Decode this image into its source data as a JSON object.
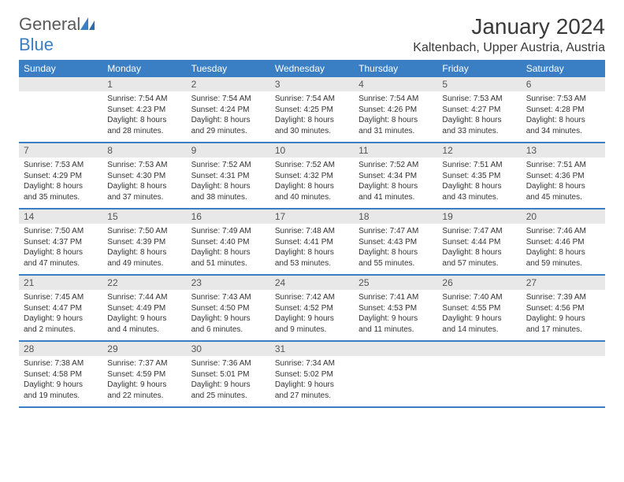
{
  "logo": {
    "word1": "General",
    "word2": "Blue"
  },
  "title": "January 2024",
  "location": "Kaltenbach, Upper Austria, Austria",
  "colors": {
    "header_bar": "#3a7fc4",
    "daynum_bg": "#e8e8e8",
    "text": "#333333",
    "logo_gray": "#5a5a5a",
    "logo_blue": "#3a7fc4"
  },
  "day_names": [
    "Sunday",
    "Monday",
    "Tuesday",
    "Wednesday",
    "Thursday",
    "Friday",
    "Saturday"
  ],
  "weeks": [
    [
      {
        "day": "",
        "lines": [
          "",
          "",
          "",
          ""
        ]
      },
      {
        "day": "1",
        "lines": [
          "Sunrise: 7:54 AM",
          "Sunset: 4:23 PM",
          "Daylight: 8 hours",
          "and 28 minutes."
        ]
      },
      {
        "day": "2",
        "lines": [
          "Sunrise: 7:54 AM",
          "Sunset: 4:24 PM",
          "Daylight: 8 hours",
          "and 29 minutes."
        ]
      },
      {
        "day": "3",
        "lines": [
          "Sunrise: 7:54 AM",
          "Sunset: 4:25 PM",
          "Daylight: 8 hours",
          "and 30 minutes."
        ]
      },
      {
        "day": "4",
        "lines": [
          "Sunrise: 7:54 AM",
          "Sunset: 4:26 PM",
          "Daylight: 8 hours",
          "and 31 minutes."
        ]
      },
      {
        "day": "5",
        "lines": [
          "Sunrise: 7:53 AM",
          "Sunset: 4:27 PM",
          "Daylight: 8 hours",
          "and 33 minutes."
        ]
      },
      {
        "day": "6",
        "lines": [
          "Sunrise: 7:53 AM",
          "Sunset: 4:28 PM",
          "Daylight: 8 hours",
          "and 34 minutes."
        ]
      }
    ],
    [
      {
        "day": "7",
        "lines": [
          "Sunrise: 7:53 AM",
          "Sunset: 4:29 PM",
          "Daylight: 8 hours",
          "and 35 minutes."
        ]
      },
      {
        "day": "8",
        "lines": [
          "Sunrise: 7:53 AM",
          "Sunset: 4:30 PM",
          "Daylight: 8 hours",
          "and 37 minutes."
        ]
      },
      {
        "day": "9",
        "lines": [
          "Sunrise: 7:52 AM",
          "Sunset: 4:31 PM",
          "Daylight: 8 hours",
          "and 38 minutes."
        ]
      },
      {
        "day": "10",
        "lines": [
          "Sunrise: 7:52 AM",
          "Sunset: 4:32 PM",
          "Daylight: 8 hours",
          "and 40 minutes."
        ]
      },
      {
        "day": "11",
        "lines": [
          "Sunrise: 7:52 AM",
          "Sunset: 4:34 PM",
          "Daylight: 8 hours",
          "and 41 minutes."
        ]
      },
      {
        "day": "12",
        "lines": [
          "Sunrise: 7:51 AM",
          "Sunset: 4:35 PM",
          "Daylight: 8 hours",
          "and 43 minutes."
        ]
      },
      {
        "day": "13",
        "lines": [
          "Sunrise: 7:51 AM",
          "Sunset: 4:36 PM",
          "Daylight: 8 hours",
          "and 45 minutes."
        ]
      }
    ],
    [
      {
        "day": "14",
        "lines": [
          "Sunrise: 7:50 AM",
          "Sunset: 4:37 PM",
          "Daylight: 8 hours",
          "and 47 minutes."
        ]
      },
      {
        "day": "15",
        "lines": [
          "Sunrise: 7:50 AM",
          "Sunset: 4:39 PM",
          "Daylight: 8 hours",
          "and 49 minutes."
        ]
      },
      {
        "day": "16",
        "lines": [
          "Sunrise: 7:49 AM",
          "Sunset: 4:40 PM",
          "Daylight: 8 hours",
          "and 51 minutes."
        ]
      },
      {
        "day": "17",
        "lines": [
          "Sunrise: 7:48 AM",
          "Sunset: 4:41 PM",
          "Daylight: 8 hours",
          "and 53 minutes."
        ]
      },
      {
        "day": "18",
        "lines": [
          "Sunrise: 7:47 AM",
          "Sunset: 4:43 PM",
          "Daylight: 8 hours",
          "and 55 minutes."
        ]
      },
      {
        "day": "19",
        "lines": [
          "Sunrise: 7:47 AM",
          "Sunset: 4:44 PM",
          "Daylight: 8 hours",
          "and 57 minutes."
        ]
      },
      {
        "day": "20",
        "lines": [
          "Sunrise: 7:46 AM",
          "Sunset: 4:46 PM",
          "Daylight: 8 hours",
          "and 59 minutes."
        ]
      }
    ],
    [
      {
        "day": "21",
        "lines": [
          "Sunrise: 7:45 AM",
          "Sunset: 4:47 PM",
          "Daylight: 9 hours",
          "and 2 minutes."
        ]
      },
      {
        "day": "22",
        "lines": [
          "Sunrise: 7:44 AM",
          "Sunset: 4:49 PM",
          "Daylight: 9 hours",
          "and 4 minutes."
        ]
      },
      {
        "day": "23",
        "lines": [
          "Sunrise: 7:43 AM",
          "Sunset: 4:50 PM",
          "Daylight: 9 hours",
          "and 6 minutes."
        ]
      },
      {
        "day": "24",
        "lines": [
          "Sunrise: 7:42 AM",
          "Sunset: 4:52 PM",
          "Daylight: 9 hours",
          "and 9 minutes."
        ]
      },
      {
        "day": "25",
        "lines": [
          "Sunrise: 7:41 AM",
          "Sunset: 4:53 PM",
          "Daylight: 9 hours",
          "and 11 minutes."
        ]
      },
      {
        "day": "26",
        "lines": [
          "Sunrise: 7:40 AM",
          "Sunset: 4:55 PM",
          "Daylight: 9 hours",
          "and 14 minutes."
        ]
      },
      {
        "day": "27",
        "lines": [
          "Sunrise: 7:39 AM",
          "Sunset: 4:56 PM",
          "Daylight: 9 hours",
          "and 17 minutes."
        ]
      }
    ],
    [
      {
        "day": "28",
        "lines": [
          "Sunrise: 7:38 AM",
          "Sunset: 4:58 PM",
          "Daylight: 9 hours",
          "and 19 minutes."
        ]
      },
      {
        "day": "29",
        "lines": [
          "Sunrise: 7:37 AM",
          "Sunset: 4:59 PM",
          "Daylight: 9 hours",
          "and 22 minutes."
        ]
      },
      {
        "day": "30",
        "lines": [
          "Sunrise: 7:36 AM",
          "Sunset: 5:01 PM",
          "Daylight: 9 hours",
          "and 25 minutes."
        ]
      },
      {
        "day": "31",
        "lines": [
          "Sunrise: 7:34 AM",
          "Sunset: 5:02 PM",
          "Daylight: 9 hours",
          "and 27 minutes."
        ]
      },
      {
        "day": "",
        "lines": [
          "",
          "",
          "",
          ""
        ]
      },
      {
        "day": "",
        "lines": [
          "",
          "",
          "",
          ""
        ]
      },
      {
        "day": "",
        "lines": [
          "",
          "",
          "",
          ""
        ]
      }
    ]
  ]
}
